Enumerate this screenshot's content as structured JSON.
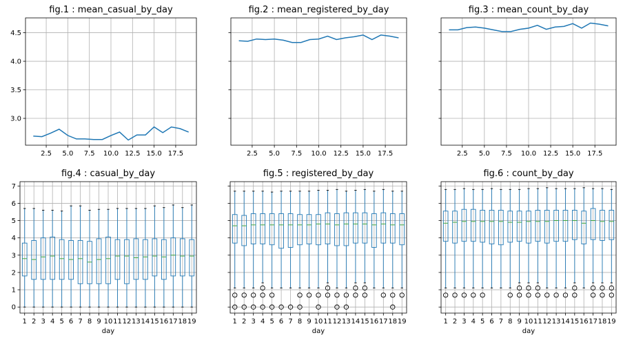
{
  "chart_data": [
    {
      "type": "line",
      "title": "fig.1 : mean_casual_by_day",
      "xlabel": "",
      "x": [
        1,
        2,
        3,
        4,
        5,
        6,
        7,
        8,
        9,
        10,
        11,
        12,
        13,
        14,
        15,
        16,
        17,
        18,
        19
      ],
      "series": [
        {
          "values": [
            2.69,
            2.68,
            2.74,
            2.81,
            2.7,
            2.64,
            2.64,
            2.63,
            2.63,
            2.7,
            2.76,
            2.62,
            2.71,
            2.71,
            2.85,
            2.75,
            2.85,
            2.82,
            2.76
          ]
        }
      ],
      "xlim": [
        0.1,
        19.9
      ],
      "ylim": [
        2.53,
        4.76
      ],
      "xticks": [
        2.5,
        5.0,
        7.5,
        10.0,
        12.5,
        15.0,
        17.5
      ],
      "xtick_labels": [
        "2.5",
        "5.0",
        "7.5",
        "10.0",
        "12.5",
        "15.0",
        "17.5"
      ],
      "yticks": [
        3.0,
        3.5,
        4.0,
        4.5
      ],
      "ytick_labels": [
        "3.0",
        "3.5",
        "4.0",
        "4.5"
      ],
      "grid": true
    },
    {
      "type": "line",
      "title": "fig.2 : mean_registered_by_day",
      "xlabel": "",
      "x": [
        1,
        2,
        3,
        4,
        5,
        6,
        7,
        8,
        9,
        10,
        11,
        12,
        13,
        14,
        15,
        16,
        17,
        18,
        19
      ],
      "series": [
        {
          "values": [
            4.36,
            4.35,
            4.39,
            4.38,
            4.39,
            4.37,
            4.33,
            4.33,
            4.38,
            4.39,
            4.44,
            4.38,
            4.41,
            4.43,
            4.46,
            4.38,
            4.46,
            4.44,
            4.41
          ]
        }
      ],
      "xlim": [
        0.1,
        19.9
      ],
      "ylim": [
        2.53,
        4.76
      ],
      "xticks": [
        2.5,
        5.0,
        7.5,
        10.0,
        12.5,
        15.0,
        17.5
      ],
      "xtick_labels": [
        "2.5",
        "5.0",
        "7.5",
        "10.0",
        "12.5",
        "15.0",
        "17.5"
      ],
      "yticks": [
        3.0,
        3.5,
        4.0,
        4.5
      ],
      "ytick_labels": [],
      "grid": true
    },
    {
      "type": "line",
      "title": "fig.3 : mean_count_by_day",
      "xlabel": "",
      "x": [
        1,
        2,
        3,
        4,
        5,
        6,
        7,
        8,
        9,
        10,
        11,
        12,
        13,
        14,
        15,
        16,
        17,
        18,
        19
      ],
      "series": [
        {
          "values": [
            4.55,
            4.55,
            4.59,
            4.6,
            4.58,
            4.55,
            4.52,
            4.52,
            4.56,
            4.58,
            4.63,
            4.56,
            4.6,
            4.61,
            4.66,
            4.58,
            4.67,
            4.65,
            4.62
          ]
        }
      ],
      "xlim": [
        0.1,
        19.9
      ],
      "ylim": [
        2.53,
        4.76
      ],
      "xticks": [
        2.5,
        5.0,
        7.5,
        10.0,
        12.5,
        15.0,
        17.5
      ],
      "xtick_labels": [
        "2.5",
        "5.0",
        "7.5",
        "10.0",
        "12.5",
        "15.0",
        "17.5"
      ],
      "yticks": [
        3.0,
        3.5,
        4.0,
        4.5
      ],
      "ytick_labels": [],
      "grid": true
    },
    {
      "type": "box",
      "title": "fig.4 : casual_by_day",
      "xlabel": "",
      "categories": [
        "1",
        "2",
        "3",
        "4",
        "5",
        "6",
        "7",
        "8",
        "9",
        "10",
        "11",
        "12",
        "13",
        "14",
        "15",
        "16",
        "17",
        "18",
        "19"
      ],
      "boxes": [
        {
          "whislo": 0,
          "q1": 1.8,
          "med": 2.8,
          "q3": 3.7,
          "whishi": 5.7,
          "fliers": []
        },
        {
          "whislo": 0,
          "q1": 1.6,
          "med": 2.75,
          "q3": 3.85,
          "whishi": 5.7,
          "fliers": []
        },
        {
          "whislo": 0,
          "q1": 1.6,
          "med": 2.9,
          "q3": 4.0,
          "whishi": 5.6,
          "fliers": []
        },
        {
          "whislo": 0,
          "q1": 1.6,
          "med": 2.95,
          "q3": 4.05,
          "whishi": 5.6,
          "fliers": []
        },
        {
          "whislo": 0,
          "q1": 1.6,
          "med": 2.8,
          "q3": 3.9,
          "whishi": 5.55,
          "fliers": []
        },
        {
          "whislo": 0,
          "q1": 1.6,
          "med": 2.75,
          "q3": 3.85,
          "whishi": 5.85,
          "fliers": []
        },
        {
          "whislo": 0,
          "q1": 1.35,
          "med": 2.8,
          "q3": 3.85,
          "whishi": 5.85,
          "fliers": []
        },
        {
          "whislo": 0,
          "q1": 1.35,
          "med": 2.6,
          "q3": 3.8,
          "whishi": 5.6,
          "fliers": []
        },
        {
          "whislo": 0,
          "q1": 1.35,
          "med": 2.75,
          "q3": 3.95,
          "whishi": 5.65,
          "fliers": []
        },
        {
          "whislo": 0,
          "q1": 1.35,
          "med": 2.8,
          "q3": 4.05,
          "whishi": 5.65,
          "fliers": []
        },
        {
          "whislo": 0,
          "q1": 1.6,
          "med": 2.95,
          "q3": 3.9,
          "whishi": 5.7,
          "fliers": []
        },
        {
          "whislo": 0,
          "q1": 1.35,
          "med": 2.95,
          "q3": 3.9,
          "whishi": 5.7,
          "fliers": []
        },
        {
          "whislo": 0,
          "q1": 1.6,
          "med": 2.85,
          "q3": 3.95,
          "whishi": 5.7,
          "fliers": []
        },
        {
          "whislo": 0,
          "q1": 1.6,
          "med": 2.9,
          "q3": 3.9,
          "whishi": 5.7,
          "fliers": []
        },
        {
          "whislo": 0,
          "q1": 1.8,
          "med": 2.95,
          "q3": 3.95,
          "whishi": 5.85,
          "fliers": []
        },
        {
          "whislo": 0,
          "q1": 1.6,
          "med": 2.9,
          "q3": 3.9,
          "whishi": 5.75,
          "fliers": []
        },
        {
          "whislo": 0,
          "q1": 1.8,
          "med": 3.0,
          "q3": 4.0,
          "whishi": 5.9,
          "fliers": []
        },
        {
          "whislo": 0,
          "q1": 1.8,
          "med": 2.95,
          "q3": 3.95,
          "whishi": 5.75,
          "fliers": []
        },
        {
          "whislo": 0,
          "q1": 1.8,
          "med": 2.95,
          "q3": 3.9,
          "whishi": 5.9,
          "fliers": []
        }
      ],
      "xlim": [
        0.5,
        19.5
      ],
      "ylim": [
        -0.35,
        7.25
      ],
      "yticks": [
        0,
        1,
        2,
        3,
        4,
        5,
        6,
        7
      ],
      "ytick_labels": [
        "0",
        "1",
        "2",
        "3",
        "4",
        "5",
        "6",
        "7"
      ],
      "xaxis_label": "day",
      "grid": true
    },
    {
      "type": "box",
      "title": "fig.5 : registered_by_day",
      "xlabel": "",
      "categories": [
        "1",
        "2",
        "3",
        "4",
        "5",
        "6",
        "7",
        "8",
        "9",
        "10",
        "11",
        "12",
        "13",
        "14",
        "15",
        "16",
        "17",
        "18",
        "19"
      ],
      "boxes": [
        {
          "whislo": 1.1,
          "q1": 3.7,
          "med": 4.7,
          "q3": 5.35,
          "whishi": 6.7,
          "fliers": [
            0.69,
            0
          ]
        },
        {
          "whislo": 1.1,
          "q1": 3.55,
          "med": 4.7,
          "q3": 5.3,
          "whishi": 6.7,
          "fliers": [
            0.69,
            0
          ]
        },
        {
          "whislo": 1.1,
          "q1": 3.65,
          "med": 4.75,
          "q3": 5.4,
          "whishi": 6.7,
          "fliers": [
            0.69,
            0
          ]
        },
        {
          "whislo": 1.4,
          "q1": 3.65,
          "med": 4.75,
          "q3": 5.4,
          "whishi": 6.7,
          "fliers": [
            1.1,
            0.69,
            0
          ]
        },
        {
          "whislo": 1.1,
          "q1": 3.6,
          "med": 4.75,
          "q3": 5.4,
          "whishi": 6.65,
          "fliers": [
            0.69,
            0
          ]
        },
        {
          "whislo": 1.1,
          "q1": 3.4,
          "med": 4.75,
          "q3": 5.4,
          "whishi": 6.7,
          "fliers": [
            0
          ]
        },
        {
          "whislo": 1.1,
          "q1": 3.45,
          "med": 4.75,
          "q3": 5.4,
          "whishi": 6.7,
          "fliers": [
            0
          ]
        },
        {
          "whislo": 1.1,
          "q1": 3.6,
          "med": 4.75,
          "q3": 5.35,
          "whishi": 6.7,
          "fliers": [
            0.69,
            0
          ]
        },
        {
          "whislo": 1.1,
          "q1": 3.65,
          "med": 4.75,
          "q3": 5.35,
          "whishi": 6.7,
          "fliers": [
            0.69
          ]
        },
        {
          "whislo": 1.1,
          "q1": 3.6,
          "med": 4.8,
          "q3": 5.35,
          "whishi": 6.75,
          "fliers": [
            0.69,
            0
          ]
        },
        {
          "whislo": 1.4,
          "q1": 3.65,
          "med": 4.8,
          "q3": 5.45,
          "whishi": 6.75,
          "fliers": [
            1.1,
            0.69
          ]
        },
        {
          "whislo": 1.1,
          "q1": 3.55,
          "med": 4.75,
          "q3": 5.4,
          "whishi": 6.8,
          "fliers": [
            0.69,
            0
          ]
        },
        {
          "whislo": 1.1,
          "q1": 3.55,
          "med": 4.8,
          "q3": 5.45,
          "whishi": 6.7,
          "fliers": [
            0.69,
            0
          ]
        },
        {
          "whislo": 1.4,
          "q1": 3.7,
          "med": 4.8,
          "q3": 5.45,
          "whishi": 6.75,
          "fliers": [
            1.1,
            0.69
          ]
        },
        {
          "whislo": 1.4,
          "q1": 3.7,
          "med": 4.8,
          "q3": 5.45,
          "whishi": 6.8,
          "fliers": [
            1.1,
            0.69
          ]
        },
        {
          "whislo": 1.1,
          "q1": 3.45,
          "med": 4.75,
          "q3": 5.4,
          "whishi": 6.7,
          "fliers": []
        },
        {
          "whislo": 1.1,
          "q1": 3.7,
          "med": 4.8,
          "q3": 5.45,
          "whishi": 6.8,
          "fliers": [
            0.69
          ]
        },
        {
          "whislo": 1.1,
          "q1": 3.7,
          "med": 4.75,
          "q3": 5.4,
          "whishi": 6.7,
          "fliers": [
            0.69,
            0
          ]
        },
        {
          "whislo": 1.1,
          "q1": 3.6,
          "med": 4.75,
          "q3": 5.4,
          "whishi": 6.7,
          "fliers": [
            0.69
          ]
        }
      ],
      "xlim": [
        0.5,
        19.5
      ],
      "ylim": [
        -0.35,
        7.25
      ],
      "yticks": [
        0,
        1,
        2,
        3,
        4,
        5,
        6,
        7
      ],
      "ytick_labels": [],
      "xaxis_label": "day",
      "grid": true
    },
    {
      "type": "box",
      "title": "fig.6 : count_by_day",
      "xlabel": "",
      "categories": [
        "1",
        "2",
        "3",
        "4",
        "5",
        "6",
        "7",
        "8",
        "9",
        "10",
        "11",
        "12",
        "13",
        "14",
        "15",
        "16",
        "17",
        "18",
        "19"
      ],
      "boxes": [
        {
          "whislo": 1.1,
          "q1": 3.8,
          "med": 4.85,
          "q3": 5.55,
          "whishi": 6.8,
          "fliers": [
            0.69
          ]
        },
        {
          "whislo": 1.1,
          "q1": 3.7,
          "med": 4.9,
          "q3": 5.55,
          "whishi": 6.8,
          "fliers": [
            0.69
          ]
        },
        {
          "whislo": 1.1,
          "q1": 3.8,
          "med": 4.95,
          "q3": 5.65,
          "whishi": 6.85,
          "fliers": [
            0.69
          ]
        },
        {
          "whislo": 1.1,
          "q1": 3.8,
          "med": 4.95,
          "q3": 5.65,
          "whishi": 6.8,
          "fliers": [
            0.69
          ]
        },
        {
          "whislo": 1.1,
          "q1": 3.75,
          "med": 4.95,
          "q3": 5.6,
          "whishi": 6.8,
          "fliers": [
            0.69
          ]
        },
        {
          "whislo": 1.1,
          "q1": 3.65,
          "med": 4.95,
          "q3": 5.6,
          "whishi": 6.85,
          "fliers": []
        },
        {
          "whislo": 1.1,
          "q1": 3.6,
          "med": 4.95,
          "q3": 5.6,
          "whishi": 6.8,
          "fliers": []
        },
        {
          "whislo": 1.1,
          "q1": 3.75,
          "med": 4.9,
          "q3": 5.55,
          "whishi": 6.8,
          "fliers": [
            0.69
          ]
        },
        {
          "whislo": 1.4,
          "q1": 3.8,
          "med": 4.9,
          "q3": 5.55,
          "whishi": 6.8,
          "fliers": [
            1.1,
            0.69
          ]
        },
        {
          "whislo": 1.4,
          "q1": 3.7,
          "med": 4.95,
          "q3": 5.55,
          "whishi": 6.85,
          "fliers": [
            1.1,
            0.69
          ]
        },
        {
          "whislo": 1.4,
          "q1": 3.8,
          "med": 4.95,
          "q3": 5.6,
          "whishi": 6.85,
          "fliers": [
            1.1,
            0.69
          ]
        },
        {
          "whislo": 1.1,
          "q1": 3.7,
          "med": 4.95,
          "q3": 5.6,
          "whishi": 6.9,
          "fliers": [
            0.69
          ]
        },
        {
          "whislo": 1.1,
          "q1": 3.8,
          "med": 5.0,
          "q3": 5.6,
          "whishi": 6.85,
          "fliers": [
            0.69
          ]
        },
        {
          "whislo": 1.1,
          "q1": 3.8,
          "med": 5.0,
          "q3": 5.6,
          "whishi": 6.85,
          "fliers": [
            0.69
          ]
        },
        {
          "whislo": 1.4,
          "q1": 3.9,
          "med": 5.0,
          "q3": 5.6,
          "whishi": 6.85,
          "fliers": [
            1.1,
            0.69
          ]
        },
        {
          "whislo": 1.1,
          "q1": 3.65,
          "med": 4.85,
          "q3": 5.55,
          "whishi": 6.9,
          "fliers": []
        },
        {
          "whislo": 1.4,
          "q1": 3.9,
          "med": 5.0,
          "q3": 5.7,
          "whishi": 6.85,
          "fliers": [
            1.1,
            0.69
          ]
        },
        {
          "whislo": 1.4,
          "q1": 3.85,
          "med": 4.95,
          "q3": 5.6,
          "whishi": 6.85,
          "fliers": [
            1.1,
            0.69
          ]
        },
        {
          "whislo": 1.4,
          "q1": 3.9,
          "med": 4.95,
          "q3": 5.6,
          "whishi": 6.8,
          "fliers": [
            1.1,
            0.69
          ]
        }
      ],
      "xlim": [
        0.5,
        19.5
      ],
      "ylim": [
        -0.35,
        7.25
      ],
      "yticks": [
        0,
        1,
        2,
        3,
        4,
        5,
        6,
        7
      ],
      "ytick_labels": [],
      "xaxis_label": "day",
      "grid": true
    }
  ]
}
